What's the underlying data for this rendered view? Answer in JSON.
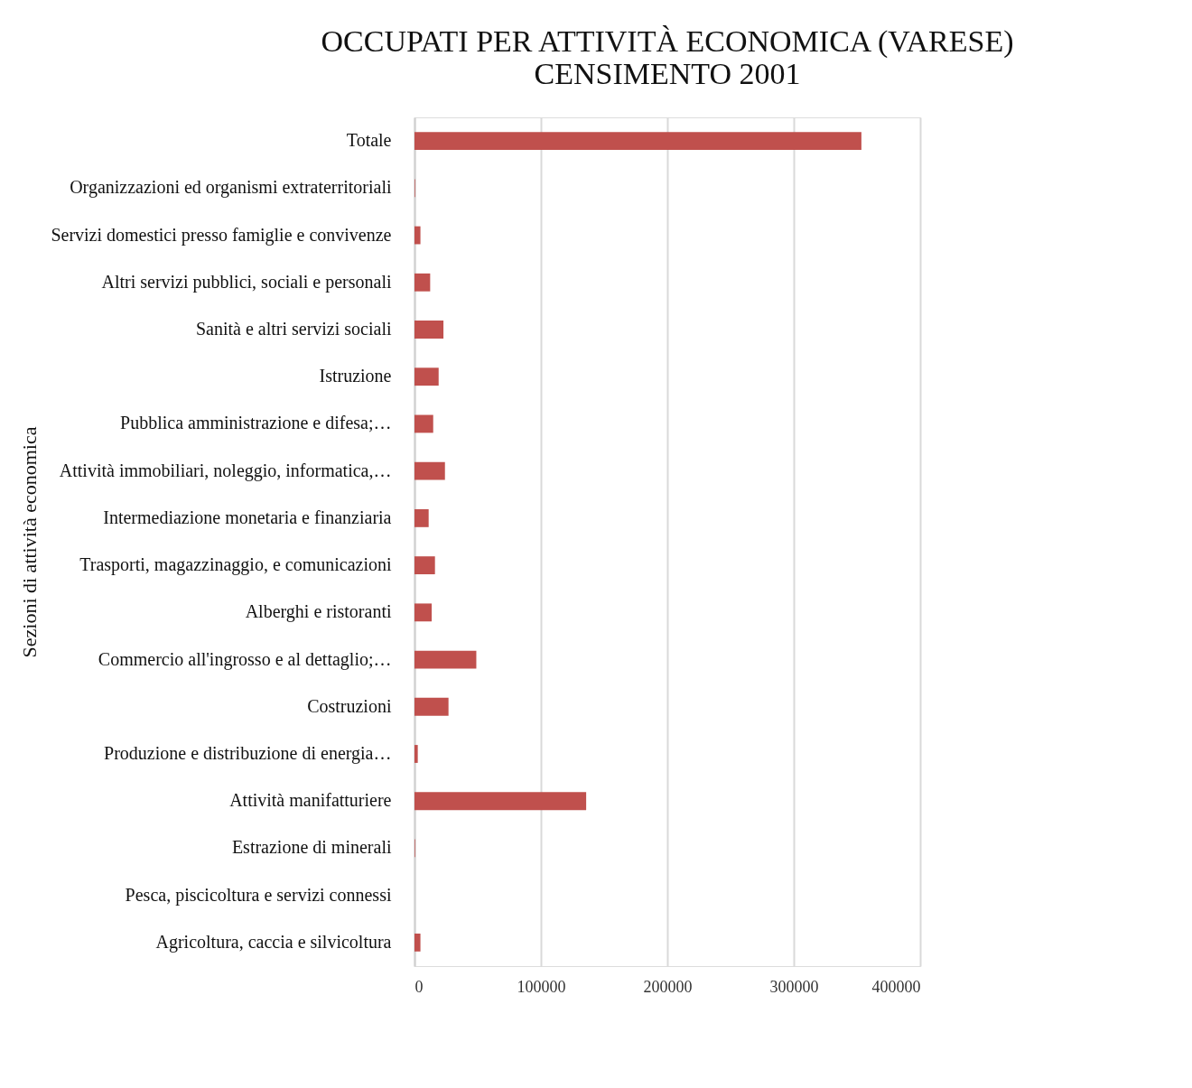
{
  "chart_data": {
    "type": "bar",
    "orientation": "horizontal",
    "title": "OCCUPATI PER ATTIVITÀ ECONOMICA  (VARESE)\nCENSIMENTO 2001",
    "ylabel": "Sezioni di attività economica",
    "categories": [
      "Totale",
      "Organizzazioni ed organismi extraterritoriali",
      "Servizi domestici presso famiglie e convivenze",
      "Altri servizi pubblici, sociali e personali",
      "Sanità e altri servizi sociali",
      "Istruzione",
      "Pubblica amministrazione e difesa;…",
      "Attività immobiliari, noleggio, informatica,…",
      "Intermediazione monetaria e finanziaria",
      "Trasporti, magazzinaggio, e comunicazioni",
      "Alberghi e ristoranti",
      "Commercio all'ingrosso e al dettaglio;…",
      "Costruzioni",
      "Produzione e distribuzione di energia…",
      "Attività manifatturiere",
      "Estrazione di minerali",
      "Pesca, piscicoltura e servizi connessi",
      "Agricoltura, caccia e silvicoltura"
    ],
    "values": [
      353500,
      500,
      4700,
      12400,
      22900,
      19100,
      14800,
      24100,
      11200,
      16200,
      13600,
      48900,
      26900,
      2600,
      135800,
      500,
      null,
      4700
    ],
    "color": "#c0504d",
    "xlim": [
      0,
      400000
    ],
    "xticks": [
      0,
      100000,
      200000,
      300000,
      400000
    ],
    "grid": "x"
  }
}
